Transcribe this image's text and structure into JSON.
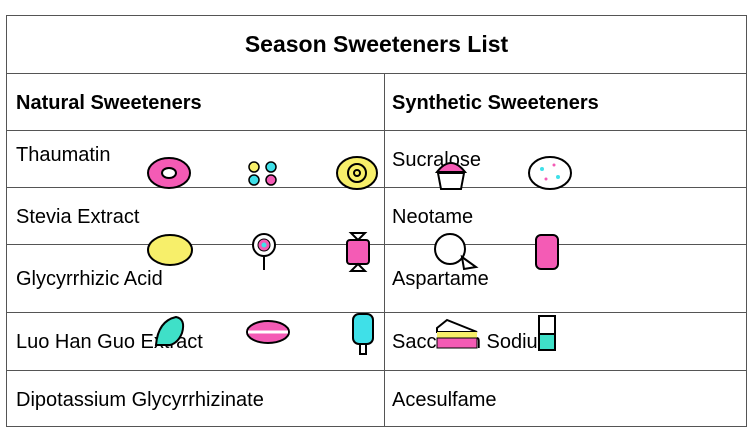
{
  "title": "Season Sweeteners List",
  "columns": [
    "Natural Sweeteners",
    "Synthetic Sweeteners"
  ],
  "rows": [
    [
      "Thaumatin",
      "Sucralose"
    ],
    [
      "Stevia Extract",
      "Neotame"
    ],
    [
      "Glycyrrhizic Acid",
      "Aspartame"
    ],
    [
      "Luo Han Guo Extract",
      "Saccharin Sodium"
    ],
    [
      "Dipotassium Glycyrrhizinate",
      "Acesulfame"
    ]
  ],
  "icons": [
    "donut-icon",
    "candies-icon",
    "swirl-candy-icon",
    "cupcake-icon",
    "cookie-icon",
    "lemon-drop-icon",
    "lollipop-icon",
    "wrapped-candy-icon",
    "pie-icon",
    "gummy-bear-icon",
    "gumdrop-icon",
    "macaron-icon",
    "popsicle-icon",
    "cake-slice-icon",
    "ice-cream-bar-icon"
  ],
  "colors": {
    "pink": "#f45bb5",
    "yellow": "#f7ef6a",
    "cyan": "#3fe0e8"
  }
}
